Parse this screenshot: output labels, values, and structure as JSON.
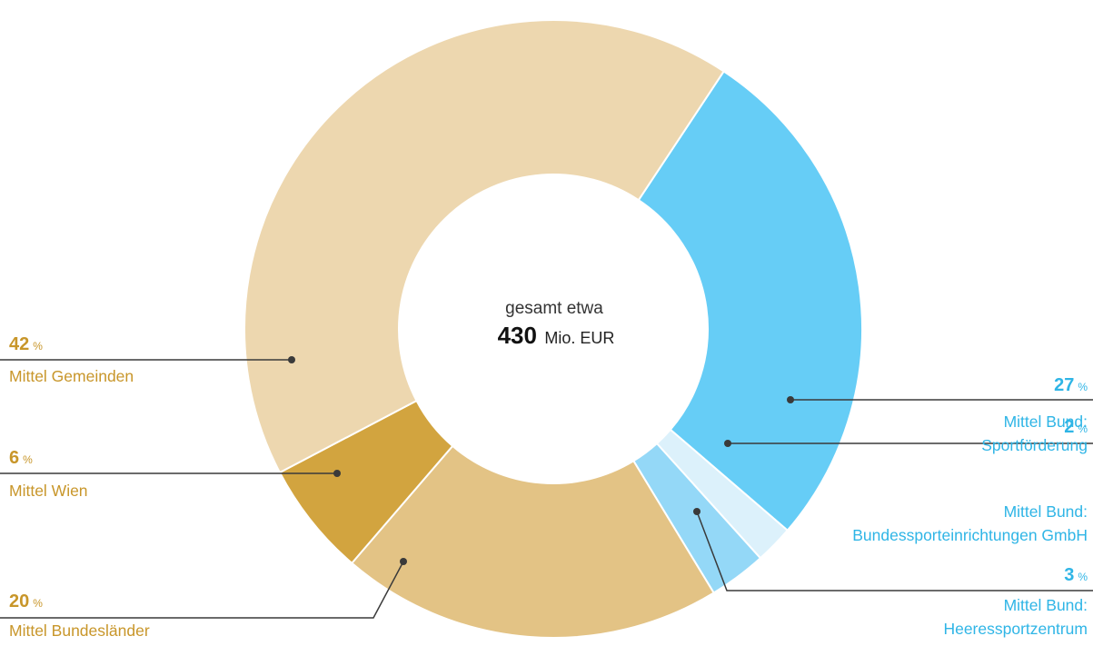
{
  "chart_data": {
    "type": "pie",
    "donut": true,
    "center_text": {
      "line1": "gesamt etwa",
      "value": "430",
      "unit": "Mio. EUR"
    },
    "percent_sign": "%",
    "slices": [
      {
        "value": 27,
        "label_lines": [
          "Mittel Bund:",
          "Sportförderung"
        ],
        "color": "#66CDF6"
      },
      {
        "value": 2,
        "label_lines": [
          "Mittel Bund:",
          "Bundessporteinrichtungen GmbH"
        ],
        "color": "#DCF1FB"
      },
      {
        "value": 3,
        "label_lines": [
          "Mittel Bund:",
          "Heeressportzentrum"
        ],
        "color": "#94D8F7"
      },
      {
        "value": 20,
        "label_lines": [
          "Mittel Bundesländer"
        ],
        "color": "#E3C385"
      },
      {
        "value": 6,
        "label_lines": [
          "Mittel Wien"
        ],
        "color": "#D2A43F"
      },
      {
        "value": 42,
        "label_lines": [
          "Mittel Gemeinden"
        ],
        "color": "#EDD7AF"
      }
    ],
    "label_colors": {
      "bund": "#2FB5E6",
      "land": "#C8962A"
    }
  }
}
